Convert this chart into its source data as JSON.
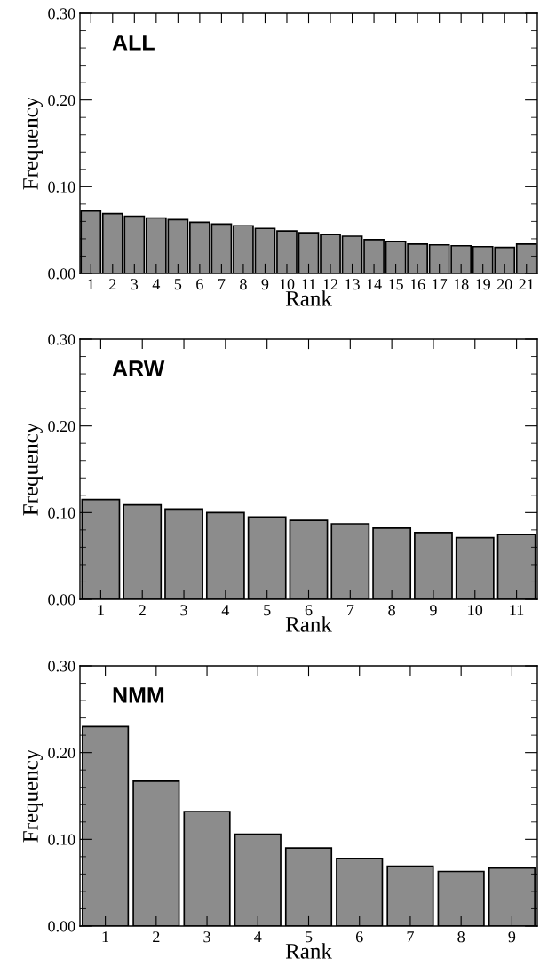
{
  "chart_data": [
    {
      "type": "bar",
      "xlabel": "Rank",
      "ylabel": "Frequency",
      "annotations": [
        "ALL"
      ],
      "categories": [
        "1",
        "2",
        "3",
        "4",
        "5",
        "6",
        "7",
        "8",
        "9",
        "10",
        "11",
        "12",
        "13",
        "14",
        "15",
        "16",
        "17",
        "18",
        "19",
        "20",
        "21"
      ],
      "values": [
        0.072,
        0.069,
        0.066,
        0.064,
        0.062,
        0.059,
        0.057,
        0.055,
        0.052,
        0.049,
        0.047,
        0.045,
        0.043,
        0.039,
        0.037,
        0.034,
        0.033,
        0.032,
        0.031,
        0.03,
        0.034
      ],
      "color": "#8c8c8c",
      "ylim": [
        0,
        0.3
      ],
      "yticks": [
        {
          "value": 0,
          "label": "0.00"
        },
        {
          "value": 0.1,
          "label": "0.10"
        },
        {
          "value": 0.2,
          "label": "0.20"
        },
        {
          "value": 0.3,
          "label": "0.30"
        }
      ],
      "grid": false
    },
    {
      "type": "bar",
      "xlabel": "Rank",
      "ylabel": "Frequency",
      "annotations": [
        "ARW"
      ],
      "categories": [
        "1",
        "2",
        "3",
        "4",
        "5",
        "6",
        "7",
        "8",
        "9",
        "10",
        "11"
      ],
      "values": [
        0.115,
        0.109,
        0.104,
        0.1,
        0.095,
        0.091,
        0.087,
        0.082,
        0.077,
        0.071,
        0.075
      ],
      "color": "#8c8c8c",
      "ylim": [
        0,
        0.3
      ],
      "yticks": [
        {
          "value": 0,
          "label": "0.00"
        },
        {
          "value": 0.1,
          "label": "0.10"
        },
        {
          "value": 0.2,
          "label": "0.20"
        },
        {
          "value": 0.3,
          "label": "0.30"
        }
      ],
      "grid": false
    },
    {
      "type": "bar",
      "xlabel": "Rank",
      "ylabel": "Frequency",
      "annotations": [
        "NMM"
      ],
      "categories": [
        "1",
        "2",
        "3",
        "4",
        "5",
        "6",
        "7",
        "8",
        "9"
      ],
      "values": [
        0.23,
        0.167,
        0.132,
        0.106,
        0.09,
        0.078,
        0.069,
        0.063,
        0.067
      ],
      "color": "#8c8c8c",
      "ylim": [
        0,
        0.3
      ],
      "yticks": [
        {
          "value": 0,
          "label": "0.00"
        },
        {
          "value": 0.1,
          "label": "0.10"
        },
        {
          "value": 0.2,
          "label": "0.20"
        },
        {
          "value": 0.3,
          "label": "0.30"
        }
      ],
      "grid": false
    }
  ]
}
